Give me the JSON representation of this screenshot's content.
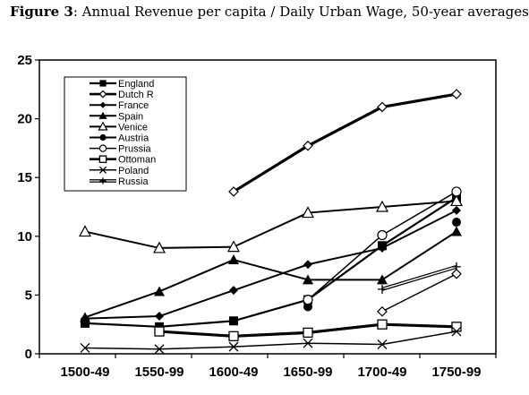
{
  "caption": {
    "label": "Figure 3",
    "text": ": Annual Revenue per capita / Daily Urban Wage, 50-year averages"
  },
  "chart_data": {
    "type": "line",
    "title": "",
    "xlabel": "",
    "ylabel": "",
    "categories": [
      "1500-49",
      "1550-99",
      "1600-49",
      "1650-99",
      "1700-49",
      "1750-99"
    ],
    "ylim": [
      0,
      25
    ],
    "yticks": [
      0,
      5,
      10,
      15,
      20,
      25
    ],
    "grid": false,
    "legend": "top-left",
    "series": [
      {
        "name": "England",
        "marker": "square-filled",
        "width": 2.2,
        "values": [
          2.6,
          2.3,
          2.8,
          4.6,
          9.2,
          13.3
        ]
      },
      {
        "name": "Dutch R",
        "marker": "diamond-open",
        "width": 3.2,
        "values": [
          null,
          null,
          13.8,
          17.7,
          21.0,
          22.1
        ]
      },
      {
        "name": "France",
        "marker": "diamond-filled",
        "width": 2.0,
        "values": [
          3.0,
          3.2,
          5.4,
          7.6,
          9.0,
          12.2
        ]
      },
      {
        "name": "Spain",
        "marker": "triangle-filled",
        "width": 2.0,
        "values": [
          3.1,
          5.3,
          8.0,
          6.3,
          6.3,
          10.4
        ]
      },
      {
        "name": "Venice",
        "marker": "triangle-open",
        "width": 2.0,
        "values": [
          10.4,
          9.0,
          9.1,
          12.0,
          12.5,
          13.0
        ]
      },
      {
        "name": "Austria",
        "marker": "circle-filled",
        "width": 2.0,
        "values": [
          null,
          null,
          null,
          4.0,
          null,
          11.2
        ]
      },
      {
        "name": "Prussia",
        "marker": "circle-open",
        "width": 1.5,
        "values": [
          null,
          null,
          null,
          4.6,
          10.1,
          13.8
        ]
      },
      {
        "name": "Ottoman",
        "marker": "square-open",
        "width": 3.2,
        "values": [
          null,
          1.9,
          1.5,
          1.8,
          2.5,
          2.3
        ]
      },
      {
        "name": "Poland",
        "marker": "x",
        "width": 1.5,
        "values": [
          0.5,
          0.4,
          0.6,
          0.9,
          0.8,
          1.9
        ]
      },
      {
        "name": "Russia",
        "marker": "plus",
        "width": 3.0,
        "style": "double",
        "values": [
          null,
          null,
          null,
          null,
          5.5,
          7.4
        ]
      },
      {
        "name": "",
        "marker": "diamond-open",
        "width": 1.5,
        "in_legend": false,
        "values": [
          null,
          null,
          null,
          null,
          3.6,
          6.8
        ]
      }
    ]
  }
}
